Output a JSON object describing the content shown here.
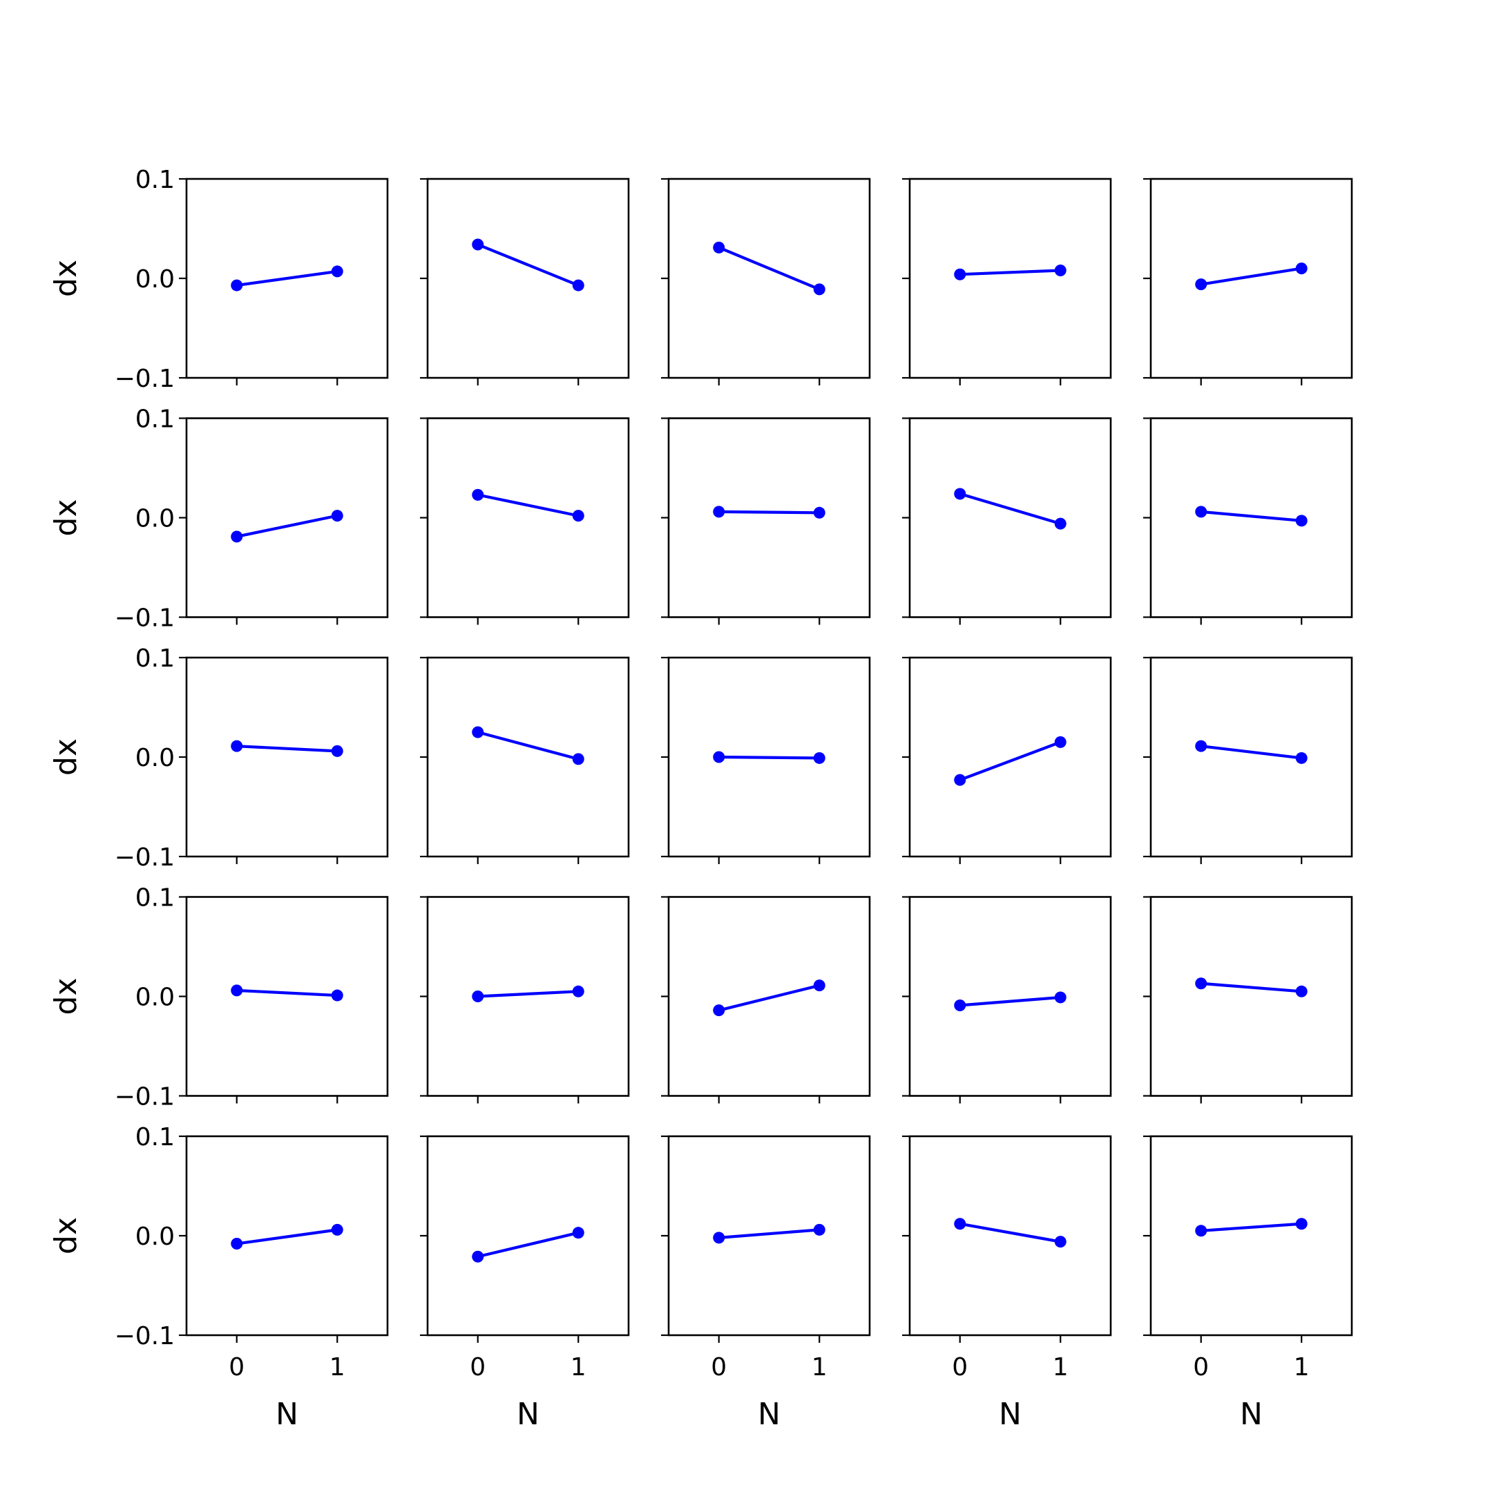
{
  "chart_data": {
    "type": "line",
    "layout": "5x5 grid of subplots",
    "line_color": "#0000ff",
    "marker": "circle",
    "xlabel": "N",
    "ylabel": "dx",
    "xlim": [
      -0.5,
      1.5
    ],
    "ylim": [
      -0.1,
      0.1
    ],
    "x_ticks": [
      0,
      1
    ],
    "x_tick_labels": [
      "0",
      "1"
    ],
    "y_ticks": [
      -0.1,
      0.0,
      0.1
    ],
    "y_tick_labels": [
      "−0.1",
      "0.0",
      "0.1"
    ],
    "x": [
      0,
      1
    ],
    "panels": [
      [
        {
          "y": [
            -0.007,
            0.007
          ]
        },
        {
          "y": [
            0.034,
            -0.007
          ]
        },
        {
          "y": [
            0.031,
            -0.011
          ]
        },
        {
          "y": [
            0.004,
            0.008
          ]
        },
        {
          "y": [
            -0.006,
            0.01
          ]
        }
      ],
      [
        {
          "y": [
            -0.019,
            0.002
          ]
        },
        {
          "y": [
            0.023,
            0.002
          ]
        },
        {
          "y": [
            0.006,
            0.005
          ]
        },
        {
          "y": [
            0.024,
            -0.006
          ]
        },
        {
          "y": [
            0.006,
            -0.003
          ]
        }
      ],
      [
        {
          "y": [
            0.011,
            0.006
          ]
        },
        {
          "y": [
            0.025,
            -0.002
          ]
        },
        {
          "y": [
            0.0,
            -0.001
          ]
        },
        {
          "y": [
            -0.023,
            0.015
          ]
        },
        {
          "y": [
            0.011,
            -0.001
          ]
        }
      ],
      [
        {
          "y": [
            0.006,
            0.001
          ]
        },
        {
          "y": [
            0.0,
            0.005
          ]
        },
        {
          "y": [
            -0.014,
            0.011
          ]
        },
        {
          "y": [
            -0.009,
            -0.001
          ]
        },
        {
          "y": [
            0.013,
            0.005
          ]
        }
      ],
      [
        {
          "y": [
            -0.008,
            0.006
          ]
        },
        {
          "y": [
            -0.021,
            0.003
          ]
        },
        {
          "y": [
            -0.002,
            0.006
          ]
        },
        {
          "y": [
            0.012,
            -0.006
          ]
        },
        {
          "y": [
            0.005,
            0.012
          ]
        }
      ]
    ]
  }
}
